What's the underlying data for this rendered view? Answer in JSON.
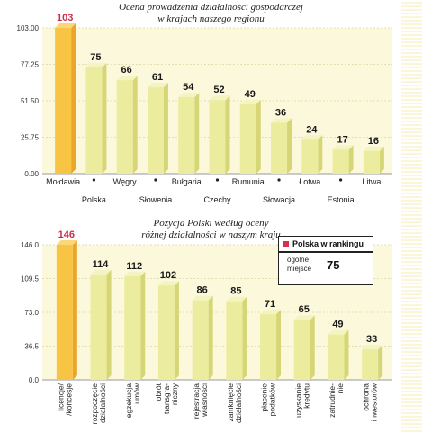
{
  "chart_data": [
    {
      "type": "bar",
      "title": "Ocena prowadzenia działalności gospodarczej\nw krajach naszego regionu",
      "categories": [
        "Mołdawia",
        "Polska",
        "Węgry",
        "Słowenia",
        "Bułgaria",
        "Czechy",
        "Rumunia",
        "Słowacja",
        "Łotwa",
        "Estonia",
        "Litwa"
      ],
      "values": [
        103,
        75,
        66,
        61,
        54,
        52,
        49,
        36,
        24,
        17,
        16
      ],
      "highlight_index": 0,
      "yticks": [
        "0.00",
        "25.75",
        "51.50",
        "77.25",
        "103.00"
      ],
      "ylim": [
        0,
        103
      ],
      "grid": true
    },
    {
      "type": "bar",
      "title": "Pozycja Polski według oceny\nróżnej działalności w naszym kraju",
      "categories": [
        "licencje/ /koncesje",
        "rozpoczęcie działalności",
        "egzekucja umów",
        "obrót transgra- niczny",
        "rejestracja własności",
        "zamknięcie działalności",
        "płacenie podatków",
        "uzyskanie kredytu",
        "zatrudnie- nie",
        "ochrona inwestorów"
      ],
      "values": [
        146,
        114,
        112,
        102,
        86,
        85,
        71,
        65,
        49,
        33
      ],
      "highlight_index": 0,
      "yticks": [
        "0.0",
        "36.5",
        "73.0",
        "109.5",
        "146.0"
      ],
      "ylim": [
        0,
        146
      ],
      "grid": true,
      "legend": {
        "title": "Polska w rankingu",
        "label": "ogólne miejsce",
        "value": "75"
      }
    }
  ],
  "colors": {
    "bar": "#ecec9e",
    "bar_side": "#d6d676",
    "highlight": "#f8c444",
    "highlight_side": "#eaa52a",
    "highlight_label": "#c8304a",
    "panel": "#fcf8dc",
    "grid": "#e4dfae"
  }
}
